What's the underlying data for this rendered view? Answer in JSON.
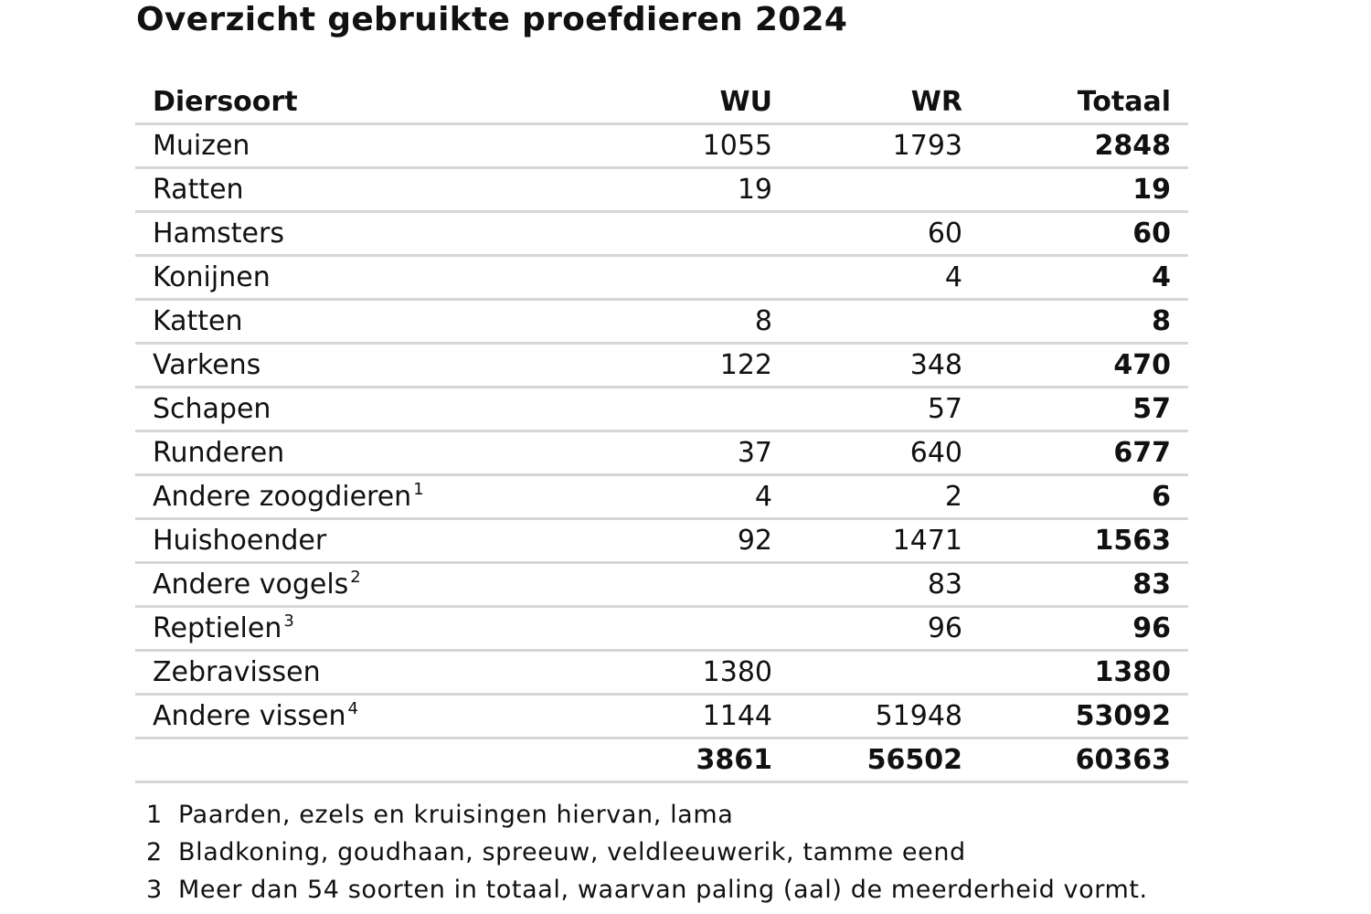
{
  "title": "Overzicht gebruikte proefdieren 2024",
  "table": {
    "headers": {
      "species": "Diersoort",
      "wu": "WU",
      "wr": "WR",
      "total": "Totaal"
    },
    "rows": [
      {
        "species": "Muizen",
        "note": "",
        "wu": "1055",
        "wr": "1793",
        "total": "2848"
      },
      {
        "species": "Ratten",
        "note": "",
        "wu": "19",
        "wr": "",
        "total": "19"
      },
      {
        "species": "Hamsters",
        "note": "",
        "wu": "",
        "wr": "60",
        "total": "60"
      },
      {
        "species": "Konijnen",
        "note": "",
        "wu": "",
        "wr": "4",
        "total": "4"
      },
      {
        "species": "Katten",
        "note": "",
        "wu": "8",
        "wr": "",
        "total": "8"
      },
      {
        "species": "Varkens",
        "note": "",
        "wu": "122",
        "wr": "348",
        "total": "470"
      },
      {
        "species": "Schapen",
        "note": "",
        "wu": "",
        "wr": "57",
        "total": "57"
      },
      {
        "species": "Runderen",
        "note": "",
        "wu": "37",
        "wr": "640",
        "total": "677"
      },
      {
        "species": "Andere zoogdieren",
        "note": "1",
        "wu": "4",
        "wr": "2",
        "total": "6"
      },
      {
        "species": "Huishoender",
        "note": "",
        "wu": "92",
        "wr": "1471",
        "total": "1563"
      },
      {
        "species": "Andere vogels",
        "note": "2",
        "wu": "",
        "wr": "83",
        "total": "83"
      },
      {
        "species": "Reptielen",
        "note": "3",
        "wu": "",
        "wr": "96",
        "total": "96"
      },
      {
        "species": "Zebravissen",
        "note": "",
        "wu": "1380",
        "wr": "",
        "total": "1380"
      },
      {
        "species": "Andere vissen",
        "note": "4",
        "wu": "1144",
        "wr": "51948",
        "total": "53092"
      }
    ],
    "totals": {
      "wu": "3861",
      "wr": "56502",
      "total": "60363"
    }
  },
  "footnotes": [
    {
      "num": "1",
      "text": "Paarden, ezels en kruisingen hiervan, lama"
    },
    {
      "num": "2",
      "text": "Bladkoning, goudhaan, spreeuw, veldleeuwerik, tamme eend"
    },
    {
      "num": "3",
      "text": "Meer dan 54 soorten in totaal, waarvan paling (aal) de meerderheid vormt."
    }
  ]
}
